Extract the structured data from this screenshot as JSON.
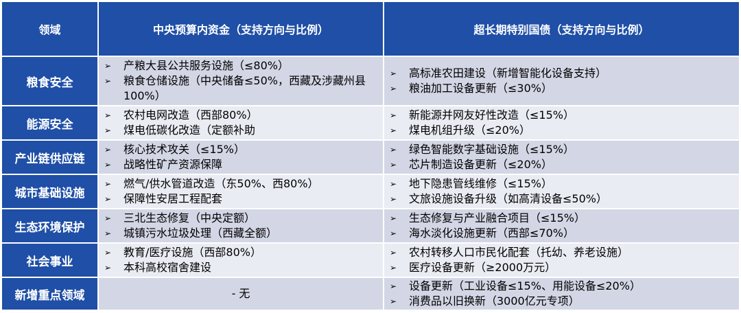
{
  "header": {
    "col_domain": "领域",
    "col_central": "中央预算内资金（支持方向与比例）",
    "col_bonds": "超长期特别国债（支持方向与比例）"
  },
  "bullet_icon": "arrow-bullet-icon",
  "colors": {
    "header_bg": "#1f4fa6",
    "row_dark": "#d3d6e5",
    "row_light": "#eaecf3"
  },
  "rows": [
    {
      "domain": "粮食安全",
      "central": [
        " 产粮大县公共服务设施（≤80%）",
        "粮食仓储设施（中央储备≤50%，西藏及涉藏州县100%）"
      ],
      "bonds": [
        "高标准农田建设（新增智能化设备支持）",
        "粮油加工设备更新（≤30%）"
      ]
    },
    {
      "domain": "能源安全",
      "central": [
        "农村电网改造（西部80%）",
        "煤电低碳化改造（定额补助"
      ],
      "bonds": [
        "新能源并网友好性改造（≤15%）",
        "煤电机组升级（≤20%）"
      ]
    },
    {
      "domain": "产业链供应链",
      "central": [
        "核心技术攻关（≤15%）",
        " 战略性矿产资源保障"
      ],
      "bonds": [
        "绿色智能数字基础设施（≤15%）",
        "芯片制造设备更新（≤20%）"
      ]
    },
    {
      "domain": "城市基础设施",
      "central": [
        "燃气/供水管道改造（东50%、西80%）",
        "保障性安居工程配套"
      ],
      "bonds": [
        "地下隐患管线维修（≤15%）",
        "文旅设施设备升级（如高清设备≤50%）"
      ]
    },
    {
      "domain": "生态环境保护",
      "central": [
        "三北生态修复（中央定额）",
        "城镇污水垃圾处理（西藏全额）"
      ],
      "bonds": [
        "生态修复与产业融合项目（≤15%）",
        "海水淡化设施更新（西部≤70%）"
      ]
    },
    {
      "domain": "社会事业",
      "central": [
        "教育/医疗设施（西部80%）",
        "本科高校宿舍建设"
      ],
      "bonds": [
        "农村转移人口市民化配套（托幼、养老设施）",
        "医疗设备更新（≥2000万元）"
      ]
    },
    {
      "domain": "新增重点领域",
      "central_none": "- 无",
      "central": [],
      "bonds": [
        "设备更新（工业设备≤15%、用能设备≤20%）",
        "消费品以旧换新（3000亿元专项）"
      ]
    }
  ]
}
